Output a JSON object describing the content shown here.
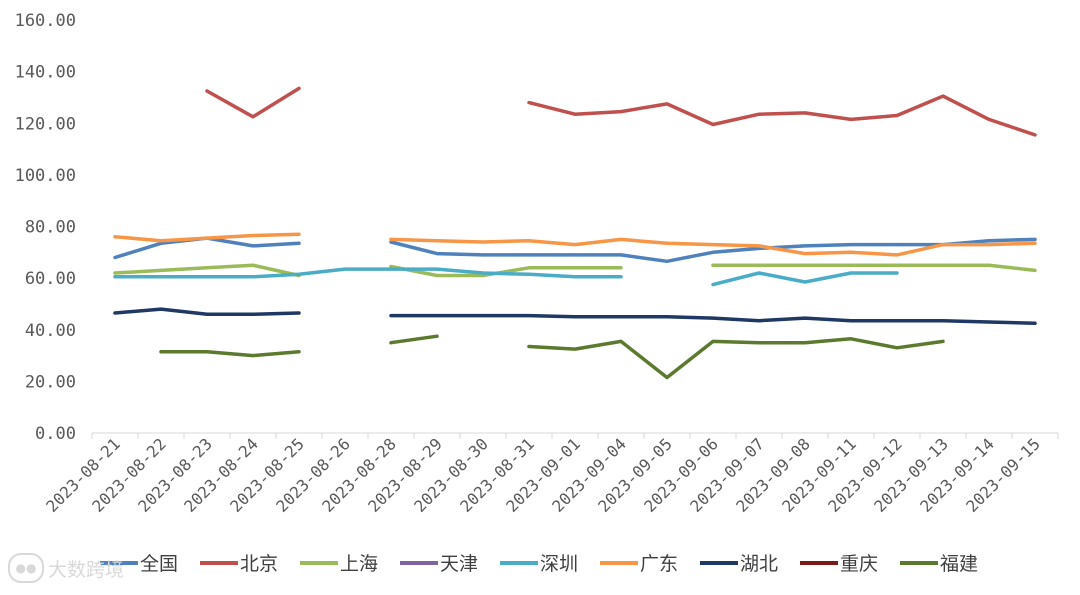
{
  "chart_data": {
    "type": "line",
    "title": "",
    "xlabel": "",
    "ylabel": "",
    "ylim": [
      0,
      160
    ],
    "yticks": [
      "0.00",
      "20.00",
      "40.00",
      "60.00",
      "80.00",
      "100.00",
      "120.00",
      "140.00",
      "160.00"
    ],
    "categories": [
      "2023-08-21",
      "2023-08-22",
      "2023-08-23",
      "2023-08-24",
      "2023-08-25",
      "2023-08-26",
      "2023-08-28",
      "2023-08-29",
      "2023-08-30",
      "2023-08-31",
      "2023-09-01",
      "2023-09-04",
      "2023-09-05",
      "2023-09-06",
      "2023-09-07",
      "2023-09-08",
      "2023-09-11",
      "2023-09-12",
      "2023-09-13",
      "2023-09-14",
      "2023-09-15"
    ],
    "legend_position": "bottom",
    "series": [
      {
        "name": "全国",
        "color": "#4f81bd",
        "values": [
          68,
          73.5,
          75.5,
          72.5,
          73.5,
          null,
          74,
          69.5,
          69,
          69,
          69,
          69,
          66.5,
          70,
          71.5,
          72.5,
          73,
          73,
          73,
          74.5,
          75
        ]
      },
      {
        "name": "北京",
        "color": "#c0504d",
        "values": [
          null,
          null,
          132.5,
          122.5,
          133.5,
          null,
          null,
          null,
          null,
          128,
          123.5,
          124.5,
          127.5,
          119.5,
          123.5,
          124,
          121.5,
          123,
          130.5,
          121.5,
          115.5
        ]
      },
      {
        "name": "上海",
        "color": "#9bbb59",
        "values": [
          62,
          63,
          64,
          65,
          61,
          null,
          64.5,
          61,
          61,
          64,
          64,
          64,
          null,
          65,
          65,
          65,
          65,
          65,
          65,
          65,
          63
        ]
      },
      {
        "name": "天津",
        "color": "#8064a2",
        "values": [
          null,
          null,
          null,
          null,
          null,
          null,
          null,
          null,
          null,
          null,
          null,
          null,
          null,
          null,
          null,
          null,
          null,
          null,
          null,
          null,
          null
        ]
      },
      {
        "name": "深圳",
        "color": "#4bacc6",
        "values": [
          60.5,
          60.5,
          60.5,
          60.5,
          61.5,
          63.5,
          63.5,
          63.5,
          62,
          61.5,
          60.5,
          60.5,
          null,
          57.5,
          62,
          58.5,
          62,
          62,
          null,
          null,
          null
        ]
      },
      {
        "name": "广东",
        "color": "#f79646",
        "values": [
          76,
          74.5,
          75.5,
          76.5,
          77,
          null,
          75,
          74.5,
          74,
          74.5,
          73,
          75,
          73.5,
          73,
          72.5,
          69.5,
          70,
          69,
          73,
          73,
          73.5
        ]
      },
      {
        "name": "湖北",
        "color": "#1f3864",
        "values": [
          46.5,
          48,
          46,
          46,
          46.5,
          null,
          45.5,
          45.5,
          45.5,
          45.5,
          45,
          45,
          45,
          44.5,
          43.5,
          44.5,
          43.5,
          43.5,
          43.5,
          43,
          42.5
        ]
      },
      {
        "name": "重庆",
        "color": "#7b1a1a",
        "values": [
          null,
          null,
          null,
          null,
          null,
          null,
          null,
          null,
          null,
          null,
          null,
          null,
          null,
          null,
          null,
          null,
          null,
          null,
          null,
          null,
          null
        ]
      },
      {
        "name": "福建",
        "color": "#5b7a2e",
        "values": [
          null,
          31.5,
          31.5,
          30,
          31.5,
          null,
          35,
          37.5,
          null,
          33.5,
          32.5,
          35.5,
          21.5,
          35.5,
          35,
          35,
          36.5,
          33,
          35.5,
          null,
          null
        ]
      }
    ]
  },
  "watermark": {
    "text": "大数跨境",
    "icon": "speech-bubble-icon"
  }
}
